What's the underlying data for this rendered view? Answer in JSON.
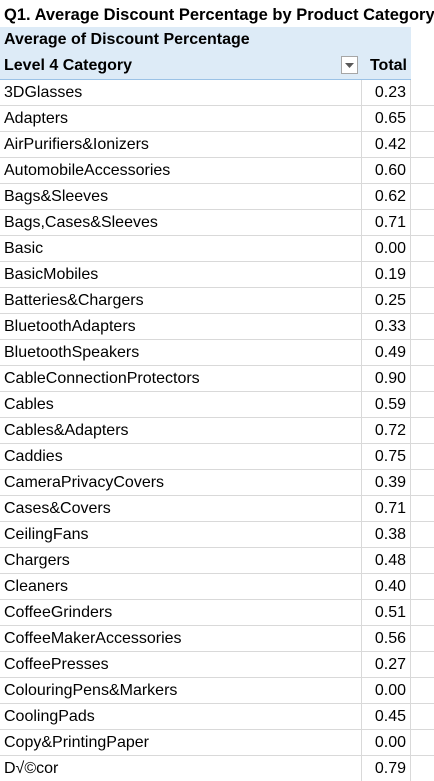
{
  "title": "Q1. Average Discount Percentage by Product Category",
  "pivot": {
    "values_label": "Average of Discount Percentage",
    "row_label": "Level 4 Category",
    "value_col_label": "Total",
    "filter_icon": "dropdown-arrow-icon"
  },
  "rows": [
    {
      "category": "3DGlasses",
      "total": "0.23"
    },
    {
      "category": "Adapters",
      "total": "0.65"
    },
    {
      "category": "AirPurifiers&Ionizers",
      "total": "0.42"
    },
    {
      "category": "AutomobileAccessories",
      "total": "0.60"
    },
    {
      "category": "Bags&Sleeves",
      "total": "0.62"
    },
    {
      "category": "Bags,Cases&Sleeves",
      "total": "0.71"
    },
    {
      "category": "Basic",
      "total": "0.00"
    },
    {
      "category": "BasicMobiles",
      "total": "0.19"
    },
    {
      "category": "Batteries&Chargers",
      "total": "0.25"
    },
    {
      "category": "BluetoothAdapters",
      "total": "0.33"
    },
    {
      "category": "BluetoothSpeakers",
      "total": "0.49"
    },
    {
      "category": "CableConnectionProtectors",
      "total": "0.90"
    },
    {
      "category": "Cables",
      "total": "0.59"
    },
    {
      "category": "Cables&Adapters",
      "total": "0.72"
    },
    {
      "category": "Caddies",
      "total": "0.75"
    },
    {
      "category": "CameraPrivacyCovers",
      "total": "0.39"
    },
    {
      "category": "Cases&Covers",
      "total": "0.71"
    },
    {
      "category": "CeilingFans",
      "total": "0.38"
    },
    {
      "category": "Chargers",
      "total": "0.48"
    },
    {
      "category": "Cleaners",
      "total": "0.40"
    },
    {
      "category": "CoffeeGrinders",
      "total": "0.51"
    },
    {
      "category": "CoffeeMakerAccessories",
      "total": "0.56"
    },
    {
      "category": "CoffeePresses",
      "total": "0.27"
    },
    {
      "category": "ColouringPens&Markers",
      "total": "0.00"
    },
    {
      "category": "CoolingPads",
      "total": "0.45"
    },
    {
      "category": "Copy&PrintingPaper",
      "total": "0.00"
    },
    {
      "category": "D√©cor",
      "total": "0.79"
    }
  ],
  "colors": {
    "header_fill": "#ddebf7",
    "header_border": "#9bc2e6",
    "gridline": "#d9d9d9"
  }
}
